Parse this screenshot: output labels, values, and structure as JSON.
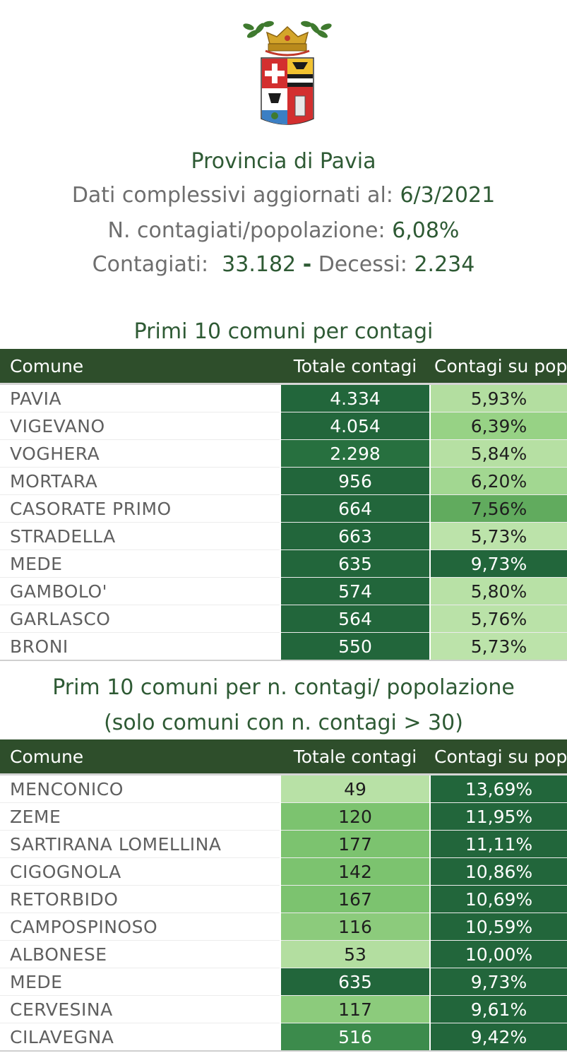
{
  "header": {
    "title": "Provincia di Pavia",
    "updated_label": "Dati complessivi aggiornati al:",
    "updated_value": "6/3/2021",
    "ratio_label": "N. contagiati/popolazione:",
    "ratio_value": "6,08%",
    "cases_label": "Contagiati:",
    "cases_value": "33.182",
    "separator": "-",
    "deaths_label": "Decessi:",
    "deaths_value": "2.234"
  },
  "table1": {
    "title": "Primi 10 comuni per contagi",
    "columns": [
      "Comune",
      "Totale contagi",
      "Contagi su pop"
    ],
    "rows": [
      {
        "comune": "PAVIA",
        "totale": "4.334",
        "perc": "5,93%",
        "c_tot": "#22663b",
        "c_perc": "#b3dea0"
      },
      {
        "comune": "VIGEVANO",
        "totale": "4.054",
        "perc": "6,39%",
        "c_tot": "#22663b",
        "c_perc": "#97d285"
      },
      {
        "comune": "VOGHERA",
        "totale": "2.298",
        "perc": "5,84%",
        "c_tot": "#27703f",
        "c_perc": "#b6e0a3"
      },
      {
        "comune": "MORTARA",
        "totale": "956",
        "perc": "6,20%",
        "c_tot": "#22663b",
        "c_perc": "#a2d791"
      },
      {
        "comune": "CASORATE PRIMO",
        "totale": "664",
        "perc": "7,56%",
        "c_tot": "#22663b",
        "c_perc": "#61ab5e"
      },
      {
        "comune": "STRADELLA",
        "totale": "663",
        "perc": "5,73%",
        "c_tot": "#22663b",
        "c_perc": "#bce3aa"
      },
      {
        "comune": "MEDE",
        "totale": "635",
        "perc": "9,73%",
        "c_tot": "#22663b",
        "c_perc": "#22663b"
      },
      {
        "comune": "GAMBOLO'",
        "totale": "574",
        "perc": "5,80%",
        "c_tot": "#22663b",
        "c_perc": "#b8e1a6"
      },
      {
        "comune": "GARLASCO",
        "totale": "564",
        "perc": "5,76%",
        "c_tot": "#22663b",
        "c_perc": "#bae2a8"
      },
      {
        "comune": "BRONI",
        "totale": "550",
        "perc": "5,73%",
        "c_tot": "#22663b",
        "c_perc": "#bce3aa"
      }
    ]
  },
  "table2": {
    "title_line1": "Prim 10 comuni per n. contagi/ popolazione",
    "title_line2": "(solo comuni con n. contagi > 30)",
    "columns": [
      "Comune",
      "Totale contagi",
      "Contagi su pop"
    ],
    "rows": [
      {
        "comune": "MENCONICO",
        "totale": "49",
        "perc": "13,69%",
        "c_tot": "#b8e1a6",
        "c_perc": "#22663b"
      },
      {
        "comune": "ZEME",
        "totale": "120",
        "perc": "11,95%",
        "c_tot": "#7cc36f",
        "c_perc": "#22663b"
      },
      {
        "comune": "SARTIRANA LOMELLINA",
        "totale": "177",
        "perc": "11,11%",
        "c_tot": "#7cc36f",
        "c_perc": "#22663b"
      },
      {
        "comune": "CIGOGNOLA",
        "totale": "142",
        "perc": "10,86%",
        "c_tot": "#7cc36f",
        "c_perc": "#22663b"
      },
      {
        "comune": "RETORBIDO",
        "totale": "167",
        "perc": "10,69%",
        "c_tot": "#7cc36f",
        "c_perc": "#22663b"
      },
      {
        "comune": "CAMPOSPINOSO",
        "totale": "116",
        "perc": "10,59%",
        "c_tot": "#8ccb7c",
        "c_perc": "#22663b"
      },
      {
        "comune": "ALBONESE",
        "totale": "53",
        "perc": "10,00%",
        "c_tot": "#b3dea0",
        "c_perc": "#22663b"
      },
      {
        "comune": "MEDE",
        "totale": "635",
        "perc": "9,73%",
        "c_tot": "#22663b",
        "c_perc": "#22663b"
      },
      {
        "comune": "CERVESINA",
        "totale": "117",
        "perc": "9,61%",
        "c_tot": "#8ccb7c",
        "c_perc": "#22663b"
      },
      {
        "comune": "CILAVEGNA",
        "totale": "516",
        "perc": "9,42%",
        "c_tot": "#3c8b4c",
        "c_perc": "#22663b"
      }
    ]
  }
}
